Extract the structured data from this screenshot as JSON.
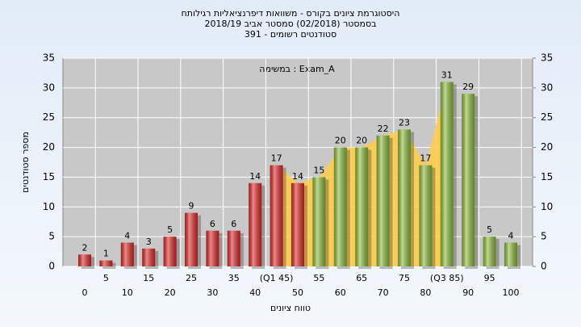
{
  "chart_data": {
    "type": "bar",
    "title": "היסטוגרמת ציונים בקורס - משוואות דיפרנציאליות רגילותח",
    "subtitle": "בסמסטר  (02/2018)  סמסטר אביב 2018/19",
    "subtitle2": "391 - סטודנטים רשומים",
    "annotation": "במשימה : Exam_A",
    "ylabel": "מספר סטודנטים",
    "xlabel": "טווח ציונים",
    "categories": [
      "0",
      "5",
      "10",
      "15",
      "20",
      "25",
      "30",
      "35",
      "40",
      "(Q1 45)",
      "50",
      "55",
      "60",
      "65",
      "70",
      "75",
      "80",
      "(Q3 85)",
      "90",
      "95",
      "100"
    ],
    "values": [
      2,
      1,
      4,
      3,
      5,
      9,
      6,
      6,
      14,
      17,
      14,
      15,
      20,
      20,
      22,
      23,
      17,
      31,
      29,
      5,
      4
    ],
    "colors": [
      "#e02828",
      "#e02828",
      "#e02828",
      "#e02828",
      "#e02828",
      "#e02828",
      "#e02828",
      "#e02828",
      "#e02828",
      "#e02828",
      "#e02828",
      "#8cbc3c",
      "#8cbc3c",
      "#8cbc3c",
      "#8cbc3c",
      "#8cbc3c",
      "#8cbc3c",
      "#8cbc3c",
      "#8cbc3c",
      "#8cbc3c",
      "#8cbc3c"
    ],
    "area_color": "#ffcc44",
    "ylim": [
      0,
      35
    ],
    "yticks": [
      0,
      5,
      10,
      15,
      20,
      25,
      30,
      35
    ],
    "y2lim": [
      0,
      35
    ],
    "y2ticks": [
      0,
      5,
      10,
      15,
      20,
      25,
      30,
      35
    ],
    "grid": true
  }
}
